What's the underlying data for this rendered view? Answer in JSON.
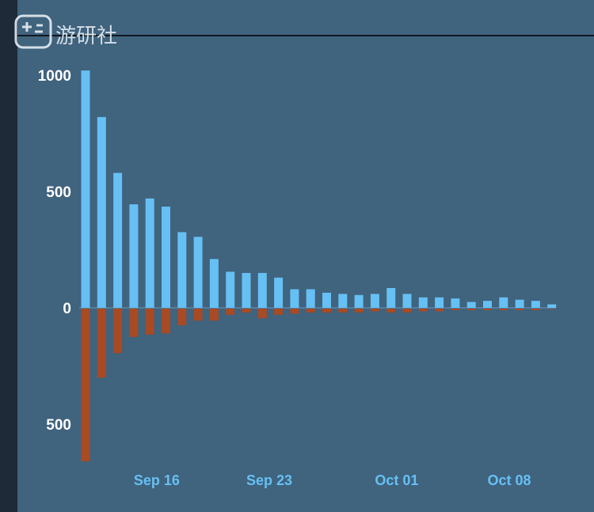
{
  "watermark": {
    "text": "游研社"
  },
  "colors": {
    "positive": "#66c0f4",
    "negative": "#a84a24",
    "panel": "#40637e"
  },
  "chart_data": {
    "type": "bar",
    "title": "",
    "xlabel": "",
    "ylabel": "",
    "ylim": [
      -680,
      1020
    ],
    "x_tick_labels": [
      {
        "label": "Sep 16",
        "date": "Sep 16"
      },
      {
        "label": "Sep 23",
        "date": "Sep 23"
      },
      {
        "label": "Oct 01",
        "date": "Oct 01"
      },
      {
        "label": "Oct 08",
        "date": "Oct 08"
      }
    ],
    "y_tick_labels": [
      {
        "label": "1000",
        "value": 1000
      },
      {
        "label": "500",
        "value": 500
      },
      {
        "label": "0",
        "value": 0
      },
      {
        "label": "500",
        "value": -500
      }
    ],
    "categories": [
      "Sep 13",
      "Sep 14",
      "Sep 15",
      "Sep 16",
      "Sep 17",
      "Sep 18",
      "Sep 19",
      "Sep 20",
      "Sep 21",
      "Sep 22",
      "Sep 23",
      "Sep 24",
      "Sep 25",
      "Sep 26",
      "Sep 27",
      "Sep 28",
      "Sep 29",
      "Sep 30",
      "Oct 01",
      "Oct 02",
      "Oct 03",
      "Oct 04",
      "Oct 05",
      "Oct 06",
      "Oct 07",
      "Oct 08",
      "Oct 09",
      "Oct 10",
      "Oct 11",
      "Oct 12"
    ],
    "series": [
      {
        "values": [
          1020,
          820,
          580,
          445,
          470,
          435,
          325,
          305,
          210,
          155,
          150,
          150,
          130,
          80,
          80,
          65,
          60,
          55,
          60,
          85,
          60,
          45,
          45,
          40,
          25,
          30,
          45,
          35,
          30,
          15
        ]
      },
      {
        "values": [
          -660,
          -300,
          -195,
          -125,
          -115,
          -110,
          -75,
          -55,
          -55,
          -30,
          -20,
          -45,
          -30,
          -25,
          -20,
          -20,
          -20,
          -20,
          -15,
          -20,
          -20,
          -15,
          -15,
          -10,
          -10,
          -10,
          -10,
          -10,
          -10,
          -5
        ]
      }
    ]
  }
}
